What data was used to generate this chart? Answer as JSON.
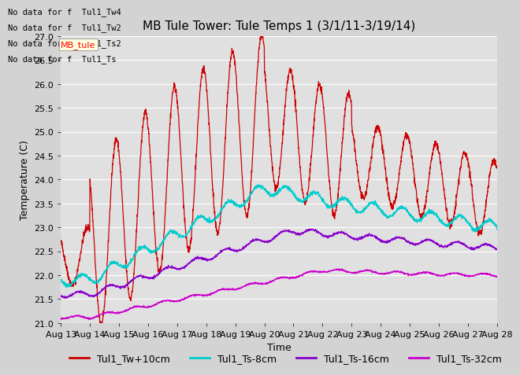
{
  "title": "MB Tule Tower: Tule Temps 1 (3/1/11-3/19/14)",
  "xlabel": "Time",
  "ylabel": "Temperature (C)",
  "ylim": [
    21.0,
    27.0
  ],
  "yticks": [
    21.0,
    21.5,
    22.0,
    22.5,
    23.0,
    23.5,
    24.0,
    24.5,
    25.0,
    25.5,
    26.0,
    26.5,
    27.0
  ],
  "xtick_labels": [
    "Aug 13",
    "Aug 14",
    "Aug 15",
    "Aug 16",
    "Aug 17",
    "Aug 18",
    "Aug 19",
    "Aug 20",
    "Aug 21",
    "Aug 22",
    "Aug 23",
    "Aug 24",
    "Aug 25",
    "Aug 26",
    "Aug 27",
    "Aug 28"
  ],
  "colors": {
    "red": "#cc0000",
    "cyan": "#00cccc",
    "purple": "#8800cc",
    "magenta": "#cc00cc"
  },
  "legend_labels": [
    "Tul1_Tw+10cm",
    "Tul1_Ts-8cm",
    "Tul1_Ts-16cm",
    "Tul1_Ts-32cm"
  ],
  "nodata_texts": [
    "No data for f  Tul1_Tw4",
    "No data for f  Tul1_Tw2",
    "No data for f  Tul1_Ts2",
    "No data for f  Tul1_Ts"
  ],
  "background_color": "#d3d3d3",
  "plot_bg_color": "#e0e0e0",
  "title_fontsize": 11,
  "axis_fontsize": 9,
  "legend_fontsize": 9
}
